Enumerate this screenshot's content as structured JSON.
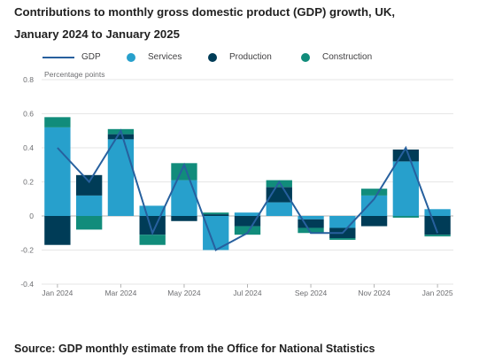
{
  "title_line1": "Contributions to monthly gross domestic product (GDP) growth, UK,",
  "title_line2": "January 2024 to January 2025",
  "source": "Source: GDP monthly estimate from the Office for National Statistics",
  "colors": {
    "gdp": "#27609e",
    "services": "#27a0cc",
    "production": "#003c57",
    "construction": "#118c7b"
  },
  "chart_data": {
    "type": "bar",
    "stacked": true,
    "ylabel": "Percentage points",
    "ylim": [
      -0.4,
      0.8
    ],
    "yticks": [
      "-0.4",
      "-0.2",
      "0",
      "0.2",
      "0.4",
      "0.6",
      "0.8"
    ],
    "ytick_values": [
      -0.4,
      -0.2,
      0,
      0.2,
      0.4,
      0.6,
      0.8
    ],
    "grid": true,
    "legend_position": "top",
    "categories": [
      "Jan 2024",
      "Feb 2024",
      "Mar 2024",
      "Apr 2024",
      "May 2024",
      "Jun 2024",
      "Jul 2024",
      "Aug 2024",
      "Sep 2024",
      "Oct 2024",
      "Nov 2024",
      "Dec 2024",
      "Jan 2025"
    ],
    "xtick_labels": [
      "Jan 2024",
      "Mar 2024",
      "May 2024",
      "Jul 2024",
      "Sep 2024",
      "Nov 2024",
      "Jan 2025"
    ],
    "xtick_indices": [
      0,
      2,
      4,
      6,
      8,
      10,
      12
    ],
    "series": [
      {
        "name": "Services",
        "kind": "bar",
        "values": [
          0.52,
          0.12,
          0.45,
          0.06,
          0.21,
          -0.2,
          0.02,
          0.08,
          -0.02,
          -0.07,
          0.12,
          0.32,
          0.04
        ]
      },
      {
        "name": "Production",
        "kind": "bar",
        "values": [
          -0.17,
          0.12,
          0.03,
          -0.11,
          -0.03,
          0.01,
          -0.06,
          0.09,
          -0.05,
          -0.06,
          -0.06,
          0.07,
          -0.11
        ]
      },
      {
        "name": "Construction",
        "kind": "bar",
        "values": [
          0.06,
          -0.08,
          0.03,
          -0.06,
          0.1,
          0.01,
          -0.05,
          0.04,
          -0.03,
          -0.01,
          0.04,
          -0.01,
          -0.01
        ]
      },
      {
        "name": "GDP",
        "kind": "line",
        "values": [
          0.4,
          0.2,
          0.5,
          -0.1,
          0.3,
          -0.2,
          -0.1,
          0.2,
          -0.1,
          -0.1,
          0.1,
          0.4,
          -0.1
        ]
      }
    ]
  }
}
